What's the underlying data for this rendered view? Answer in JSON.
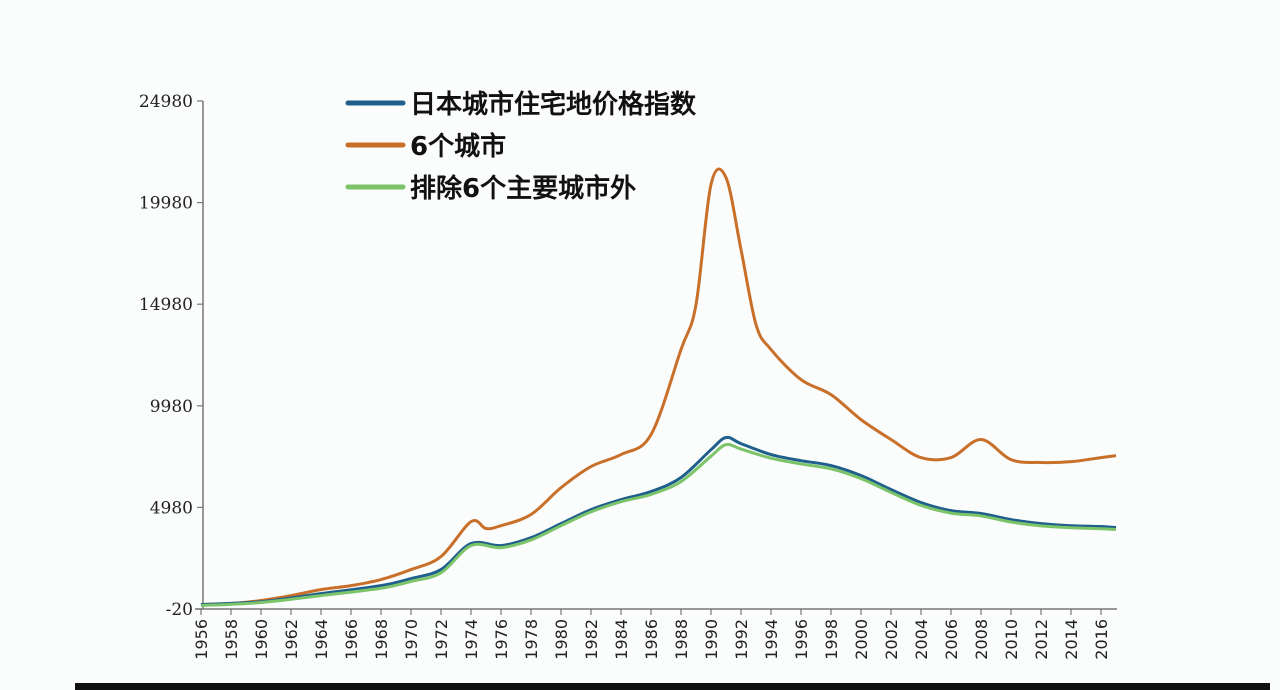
{
  "chart_data": {
    "type": "line",
    "title": "",
    "xlabel": "",
    "ylabel": "",
    "ylim": [
      -20,
      24980
    ],
    "xlim": [
      1956,
      2017
    ],
    "y_ticks": [
      -20,
      4980,
      9980,
      14980,
      19980,
      24980
    ],
    "x_ticks": [
      1956,
      1958,
      1960,
      1962,
      1964,
      1966,
      1968,
      1970,
      1972,
      1974,
      1976,
      1978,
      1980,
      1982,
      1984,
      1986,
      1988,
      1990,
      1992,
      1994,
      1996,
      1998,
      2000,
      2002,
      2004,
      2006,
      2008,
      2010,
      2012,
      2014,
      2016
    ],
    "grid": false,
    "legend_position": "top-left",
    "series": [
      {
        "name": "日本城市住宅地价格指数",
        "color": "#1f5f8b",
        "x": [
          1956,
          1960,
          1964,
          1968,
          1970,
          1972,
          1974,
          1976,
          1978,
          1980,
          1982,
          1984,
          1986,
          1988,
          1990,
          1991,
          1992,
          1994,
          1996,
          1998,
          2000,
          2002,
          2004,
          2006,
          2008,
          2010,
          2012,
          2014,
          2016,
          2017
        ],
        "y": [
          200,
          340,
          740,
          1130,
          1480,
          1920,
          3200,
          3100,
          3490,
          4180,
          4870,
          5360,
          5760,
          6450,
          7820,
          8420,
          8120,
          7580,
          7280,
          7040,
          6550,
          5860,
          5220,
          4820,
          4680,
          4380,
          4180,
          4080,
          4040,
          3990
        ]
      },
      {
        "name": "6个城市",
        "color": "#c8702a",
        "x": [
          1956,
          1958,
          1960,
          1962,
          1964,
          1966,
          1968,
          1970,
          1972,
          1974,
          1975,
          1976,
          1978,
          1980,
          1982,
          1984,
          1986,
          1988,
          1989,
          1990,
          1991,
          1992,
          1993,
          1994,
          1996,
          1998,
          2000,
          2002,
          2004,
          2006,
          2008,
          2010,
          2012,
          2014,
          2016,
          2017
        ],
        "y": [
          200,
          250,
          400,
          640,
          935,
          1130,
          1430,
          1920,
          2560,
          4280,
          3940,
          4080,
          4630,
          5950,
          6990,
          7580,
          8560,
          12750,
          14960,
          20870,
          21210,
          17670,
          13980,
          12750,
          11270,
          10530,
          9300,
          8320,
          7430,
          7430,
          8320,
          7330,
          7190,
          7230,
          7430,
          7530
        ]
      },
      {
        "name": "排除6个主要城市外",
        "color": "#7cc46a",
        "x": [
          1956,
          1960,
          1964,
          1968,
          1970,
          1972,
          1974,
          1976,
          1978,
          1980,
          1982,
          1984,
          1986,
          1988,
          1990,
          1991,
          1992,
          1994,
          1996,
          1998,
          2000,
          2002,
          2004,
          2006,
          2008,
          2010,
          2012,
          2014,
          2016,
          2017
        ],
        "y": [
          150,
          300,
          640,
          1000,
          1340,
          1760,
          3100,
          3000,
          3380,
          4080,
          4760,
          5260,
          5620,
          6250,
          7500,
          8070,
          7850,
          7400,
          7120,
          6880,
          6400,
          5720,
          5080,
          4700,
          4560,
          4260,
          4070,
          3980,
          3930,
          3890
        ]
      }
    ]
  }
}
